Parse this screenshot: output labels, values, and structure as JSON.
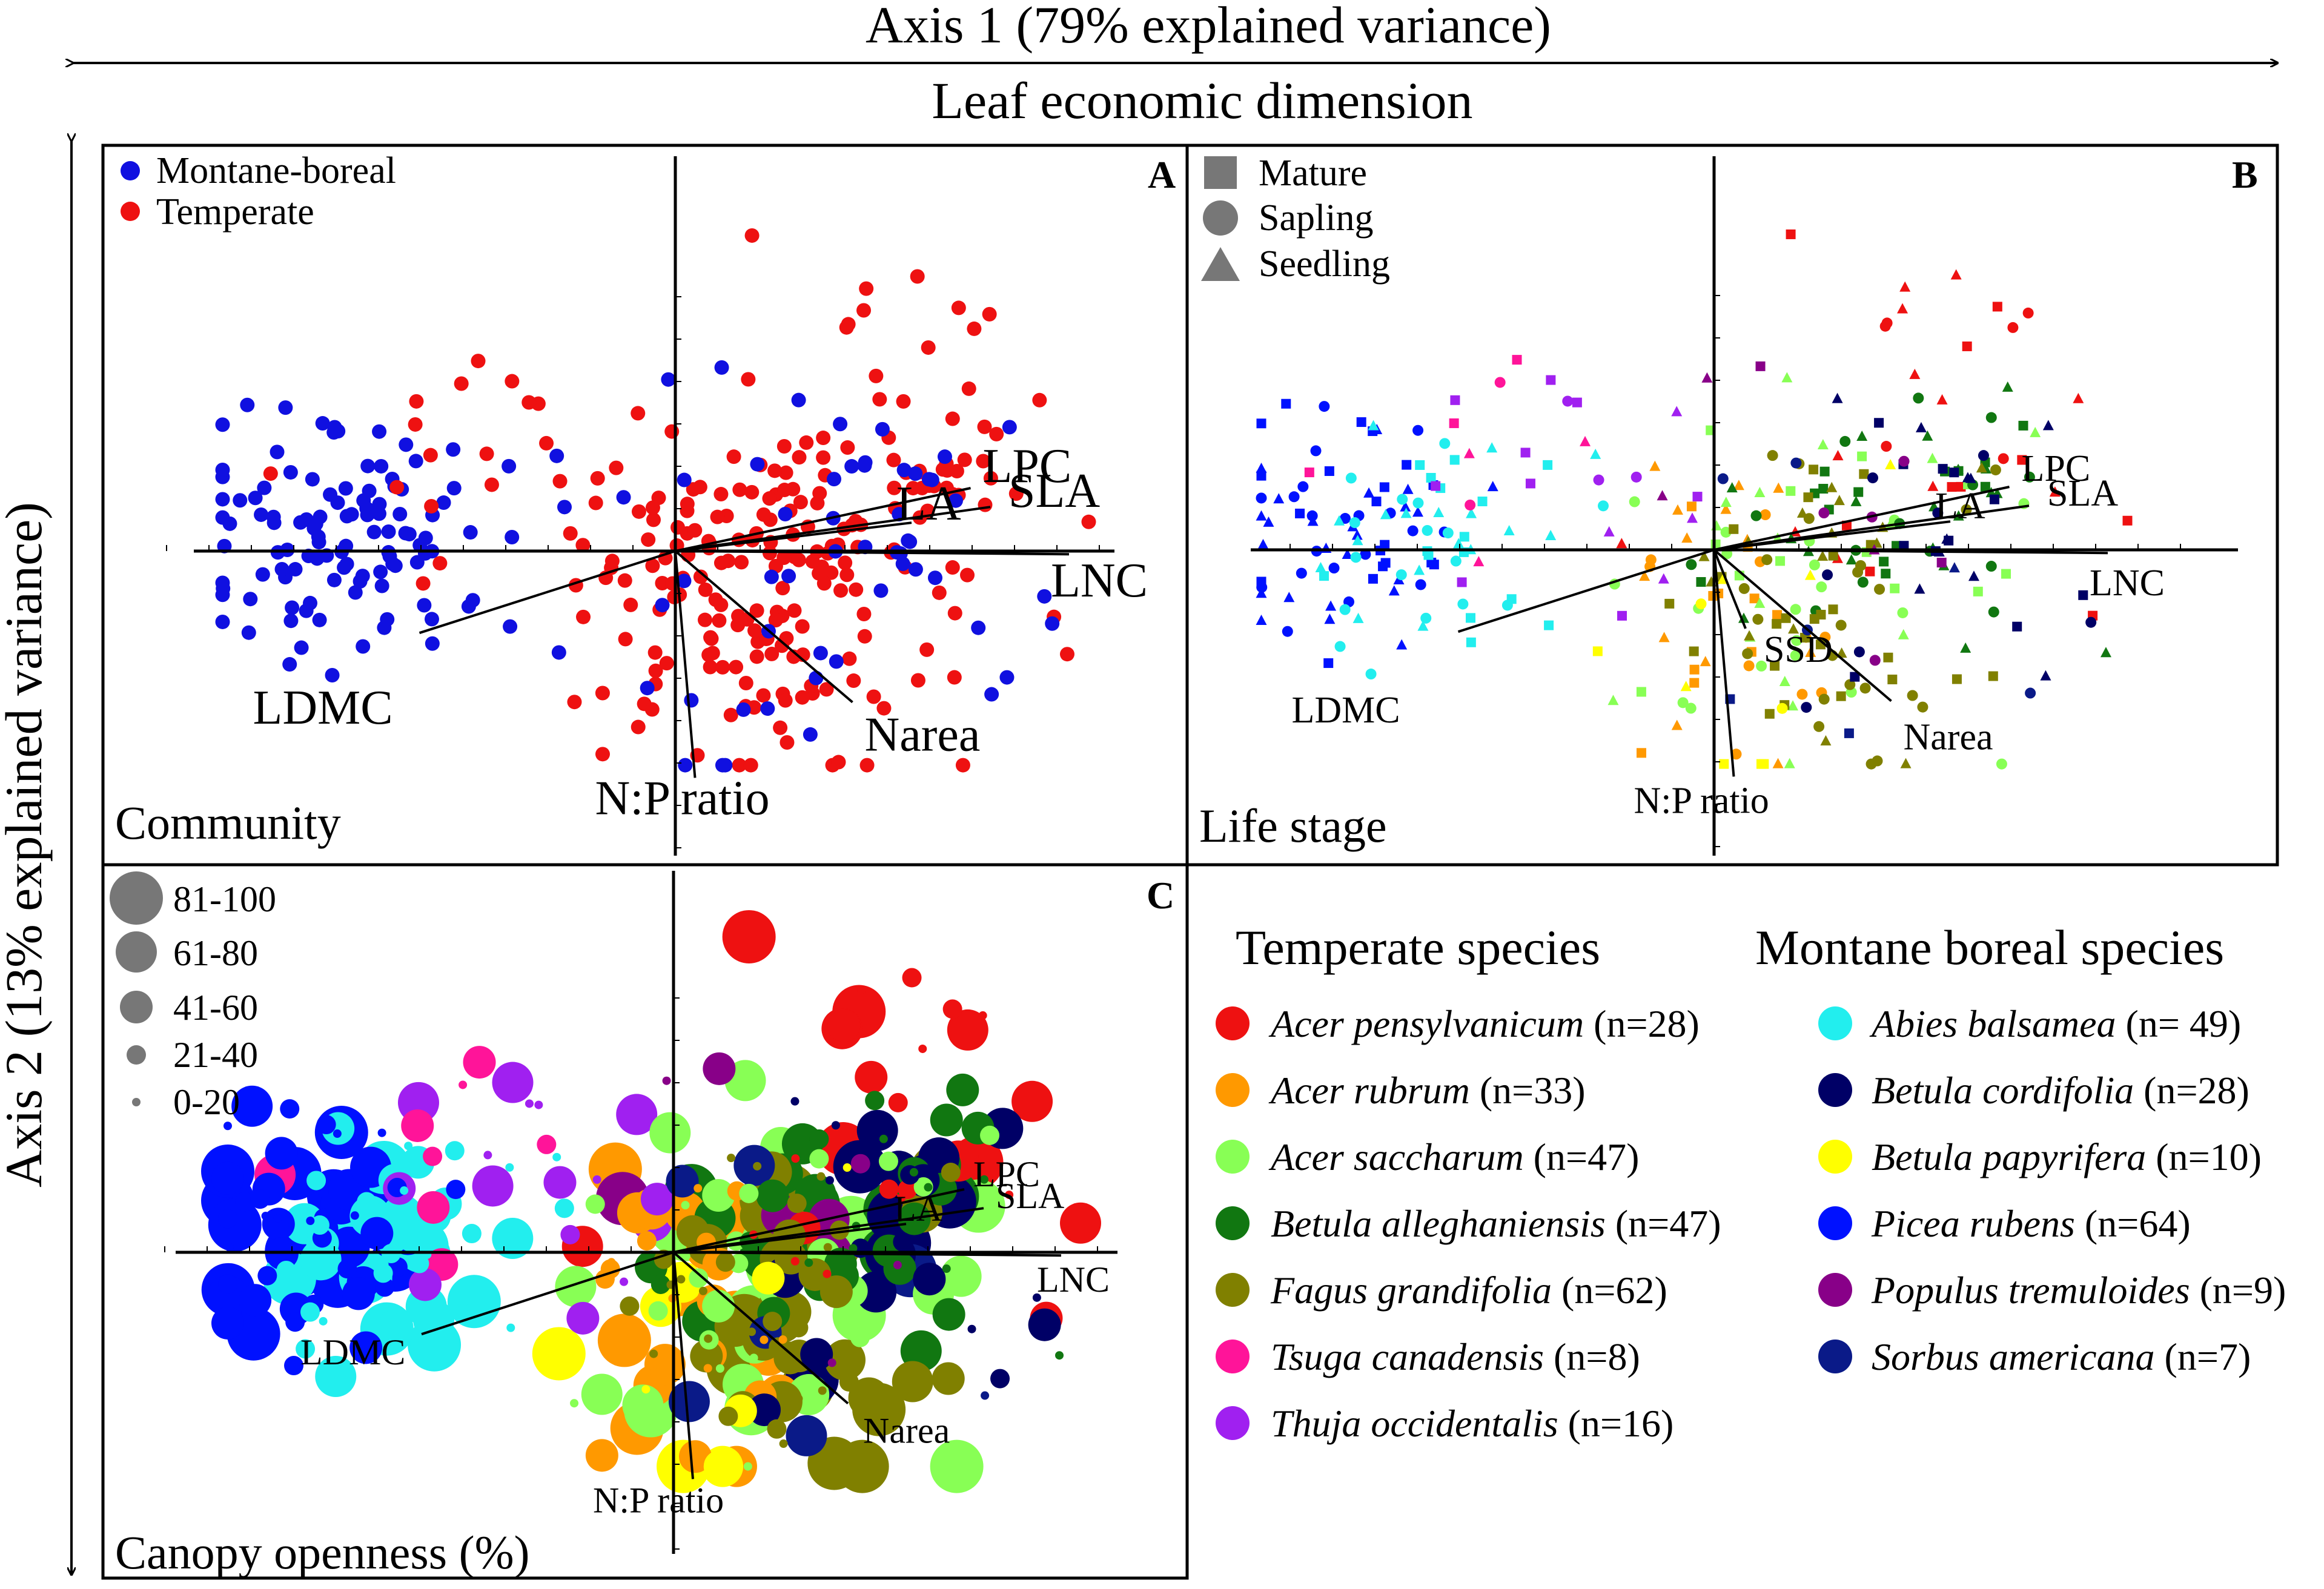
{
  "figure": {
    "top_axis_title": "Axis 1 (79% explained variance)",
    "top_axis_subtitle": "Leaf economic dimension",
    "left_axis_title": "Axis 2 (13% explained variance)"
  },
  "colors": {
    "montane_boreal": "#1010e0",
    "temperate": "#ee1111",
    "legend_grey": "#777777"
  },
  "chart_data": [
    {
      "type": "scatter",
      "panel": "A",
      "title": "Community",
      "legend": [
        {
          "label": "Montane-boreal",
          "color": "#1010e0"
        },
        {
          "label": "Temperate",
          "color": "#ee1111"
        }
      ],
      "vectors": [
        {
          "label": "LPC",
          "x": 0.75,
          "y": 0.2
        },
        {
          "label": "SLA",
          "x": 0.8,
          "y": 0.14
        },
        {
          "label": "LA",
          "x": 0.6,
          "y": 0.09
        },
        {
          "label": "LNC",
          "x": 1.0,
          "y": -0.01
        },
        {
          "label": "LDMC",
          "x": -0.65,
          "y": -0.26
        },
        {
          "label": "Narea",
          "x": 0.45,
          "y": -0.48
        },
        {
          "label": "N:P ratio",
          "x": 0.05,
          "y": -0.72
        }
      ],
      "xlim": [
        -1.2,
        1.1
      ],
      "ylim": [
        -0.75,
        1.1
      ]
    },
    {
      "type": "scatter",
      "panel": "B",
      "title": "Life stage",
      "legend": [
        {
          "label": "Mature",
          "shape": "square"
        },
        {
          "label": "Sapling",
          "shape": "circle"
        },
        {
          "label": "Seedling",
          "shape": "triangle"
        }
      ],
      "vectors": [
        {
          "label": "LPC",
          "x": 0.75,
          "y": 0.2
        },
        {
          "label": "SLA",
          "x": 0.8,
          "y": 0.14
        },
        {
          "label": "LA",
          "x": 0.6,
          "y": 0.09
        },
        {
          "label": "LNC",
          "x": 1.0,
          "y": -0.01
        },
        {
          "label": "LDMC",
          "x": -0.65,
          "y": -0.26
        },
        {
          "label": "SSD",
          "x": 0.08,
          "y": -0.25
        },
        {
          "label": "Narea",
          "x": 0.45,
          "y": -0.48
        },
        {
          "label": "N:P ratio",
          "x": 0.05,
          "y": -0.72
        }
      ],
      "xlim": [
        -1.2,
        1.1
      ],
      "ylim": [
        -0.75,
        1.1
      ]
    },
    {
      "type": "scatter",
      "panel": "C",
      "title": "Canopy openness (%)",
      "size_legend": [
        "81-100",
        "61-80",
        "41-60",
        "21-40",
        "0-20"
      ],
      "vectors": [
        {
          "label": "LPC",
          "x": 0.75,
          "y": 0.2
        },
        {
          "label": "SLA",
          "x": 0.8,
          "y": 0.14
        },
        {
          "label": "LA",
          "x": 0.6,
          "y": 0.09
        },
        {
          "label": "LNC",
          "x": 1.0,
          "y": -0.01
        },
        {
          "label": "LDMC",
          "x": -0.65,
          "y": -0.26
        },
        {
          "label": "Narea",
          "x": 0.45,
          "y": -0.48
        },
        {
          "label": "N:P ratio",
          "x": 0.05,
          "y": -0.72
        }
      ],
      "xlim": [
        -1.2,
        1.1
      ],
      "ylim": [
        -0.75,
        1.1
      ]
    }
  ],
  "species_legend": {
    "temperate_title": "Temperate species",
    "montane_title": "Montane boreal species",
    "temperate": [
      {
        "name": "Acer pensylvanicum",
        "count": "(n=28)",
        "color": "#ee1111"
      },
      {
        "name": "Acer rubrum",
        "count": "(n=33)",
        "color": "#ff9900"
      },
      {
        "name": "Acer saccharum",
        "count": "(n=47)",
        "color": "#88ff55"
      },
      {
        "name": "Betula alleghaniensis",
        "count": "(n=47)",
        "color": "#117711"
      },
      {
        "name": "Fagus grandifolia",
        "count": "(n=62)",
        "color": "#808000"
      },
      {
        "name": "Tsuga canadensis",
        "count": "(n=8)",
        "color": "#ff1499"
      },
      {
        "name": "Thuja occidentalis",
        "count": "(n=16)",
        "color": "#a020f0"
      }
    ],
    "montane": [
      {
        "name": "Abies balsamea",
        "count": "(n= 49)",
        "color": "#22eeee"
      },
      {
        "name": "Betula cordifolia",
        "count": "(n=28)",
        "color": "#000066"
      },
      {
        "name": "Betula papyrifera",
        "count": "(n=10)",
        "color": "#ffff00"
      },
      {
        "name": "Picea rubens",
        "count": "(n=64)",
        "color": "#0011ff"
      },
      {
        "name": "Populus tremuloides",
        "count": "(n=9)",
        "color": "#880088"
      },
      {
        "name": "Sorbus americana",
        "count": "(n=7)",
        "color": "#0a1a88"
      }
    ]
  }
}
